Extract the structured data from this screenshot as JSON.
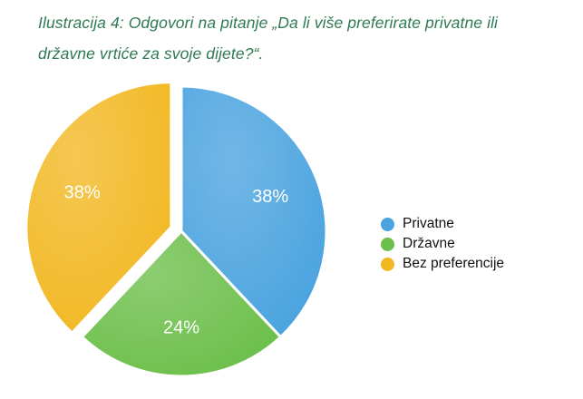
{
  "caption": {
    "line1": "Ilustracija 4: Odgovori na pitanje „Da li više preferirate privatne ili",
    "line2": "državne vrtiće za svoje dijete?“."
  },
  "chart_data": {
    "type": "pie",
    "categories": [
      "Privatne",
      "Državne",
      "Bez preferencije"
    ],
    "values": [
      38,
      24,
      38
    ],
    "labels": [
      "38%",
      "24%",
      "38%"
    ],
    "colors": [
      "#4aa3df",
      "#6cbf4a",
      "#f2b822"
    ],
    "legend": "right",
    "title": ""
  }
}
